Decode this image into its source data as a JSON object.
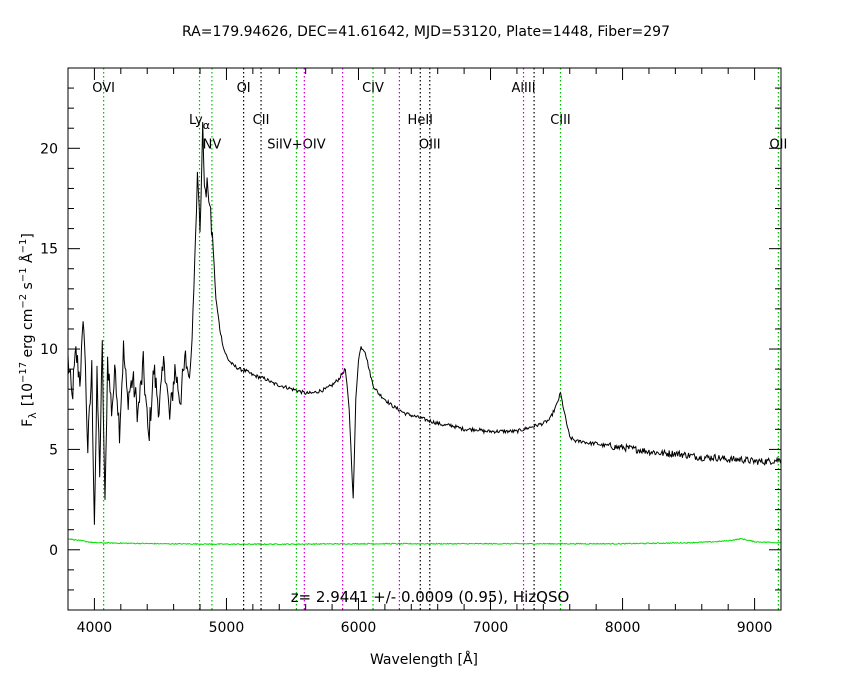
{
  "chart_data": {
    "type": "line",
    "title": "RA=179.94626, DEC=41.61642, MJD=53120, Plate=1448, Fiber=297",
    "xlabel": "Wavelength [Å]",
    "ylabel": {
      "main": "F",
      "sub": "λ",
      "unit_prefix": "[10",
      "exp1": "−17",
      "mid": " erg cm",
      "exp2": "−2",
      "mid2": " s",
      "exp3": "−1",
      "mid3": " Å",
      "exp4": "−1",
      "suffix": "]"
    },
    "xlim": [
      3800,
      9200
    ],
    "ylim": [
      -3,
      24
    ],
    "x_ticks": [
      4000,
      5000,
      6000,
      7000,
      8000,
      9000
    ],
    "y_ticks": [
      0,
      5,
      10,
      15,
      20
    ],
    "annotation": "z= 2.9441 +/- 0.0009 (0.95), HizQSO",
    "colors": {
      "flux": "#000000",
      "error": "#00dd00",
      "green_line": "#00bb00",
      "magenta_line": "#cc00cc",
      "black_line": "#000000"
    },
    "lines": [
      {
        "label": "OVI",
        "x": 4070,
        "color": "green",
        "label_y": 22.8
      },
      {
        "label": "Lyα",
        "x": 4796,
        "color": "green",
        "label_y": 21.2
      },
      {
        "label": "NV",
        "x": 4890,
        "color": "green",
        "label_y": 20.0
      },
      {
        "label": "OI",
        "x": 5130,
        "color": "black",
        "label_y": 22.8
      },
      {
        "label": "CII",
        "x": 5262,
        "color": "black",
        "label_y": 21.2
      },
      {
        "label": "SiIV+OIV",
        "x": 5530,
        "color": "green",
        "label_y": 20.0
      },
      {
        "label": "",
        "x": 5590,
        "color": "magenta",
        "label_y": 0
      },
      {
        "label": "",
        "x": 5880,
        "color": "magenta",
        "label_y": 0
      },
      {
        "label": "CIV",
        "x": 6110,
        "color": "green",
        "label_y": 22.8
      },
      {
        "label": "",
        "x": 6310,
        "color": "magenta",
        "label_y": 0
      },
      {
        "label": "HeII",
        "x": 6468,
        "color": "black",
        "label_y": 21.2
      },
      {
        "label": "OIII",
        "x": 6540,
        "color": "black",
        "label_y": 20.0
      },
      {
        "label": "AlIII",
        "x": 7250,
        "color": "magenta",
        "label_y": 22.8
      },
      {
        "label": "",
        "x": 7330,
        "color": "black",
        "label_y": 0
      },
      {
        "label": "CIII",
        "x": 7530,
        "color": "green",
        "label_y": 21.2
      },
      {
        "label": "OII",
        "x": 9180,
        "color": "green",
        "label_y": 20.0
      }
    ],
    "series": [
      {
        "name": "flux",
        "x": [
          3800,
          3830,
          3860,
          3890,
          3920,
          3950,
          3980,
          4000,
          4020,
          4040,
          4060,
          4080,
          4100,
          4130,
          4160,
          4190,
          4220,
          4250,
          4290,
          4330,
          4370,
          4410,
          4450,
          4490,
          4530,
          4570,
          4610,
          4650,
          4690,
          4720,
          4740,
          4760,
          4780,
          4800,
          4820,
          4840,
          4860,
          4880,
          4900,
          4920,
          4950,
          4980,
          5010,
          5050,
          5100,
          5150,
          5200,
          5250,
          5300,
          5350,
          5400,
          5450,
          5500,
          5550,
          5600,
          5650,
          5700,
          5750,
          5800,
          5850,
          5900,
          5930,
          5960,
          5980,
          6000,
          6020,
          6050,
          6080,
          6110,
          6150,
          6200,
          6250,
          6300,
          6350,
          6400,
          6450,
          6500,
          6550,
          6600,
          6650,
          6700,
          6750,
          6800,
          6850,
          6900,
          6950,
          7000,
          7050,
          7100,
          7150,
          7200,
          7250,
          7300,
          7350,
          7400,
          7450,
          7500,
          7530,
          7560,
          7600,
          7650,
          7700,
          7750,
          7800,
          7850,
          7900,
          7950,
          8000,
          8100,
          8200,
          8300,
          8400,
          8500,
          8600,
          8700,
          8800,
          8900,
          9000,
          9100,
          9200
        ],
        "y": [
          9.5,
          7.5,
          9.8,
          8.5,
          11.5,
          5.0,
          9.0,
          1.5,
          8.5,
          4.0,
          10.0,
          2.0,
          9.5,
          7.0,
          9.0,
          6.0,
          10.0,
          7.5,
          8.5,
          6.8,
          9.2,
          5.5,
          9.0,
          7.0,
          9.5,
          6.5,
          9.0,
          7.5,
          9.5,
          8.5,
          10.5,
          15.0,
          18.5,
          16.0,
          20.8,
          17.5,
          18.2,
          16.5,
          15.0,
          12.5,
          11.0,
          10.0,
          9.5,
          9.2,
          9.0,
          8.9,
          8.7,
          8.6,
          8.5,
          8.3,
          8.2,
          8.1,
          8.0,
          7.9,
          7.8,
          7.8,
          7.9,
          8.0,
          8.2,
          8.5,
          9.0,
          7.0,
          2.5,
          7.5,
          9.5,
          10.1,
          9.9,
          9.0,
          8.2,
          7.8,
          7.5,
          7.2,
          7.0,
          6.8,
          6.7,
          6.6,
          6.5,
          6.4,
          6.3,
          6.2,
          6.2,
          6.1,
          6.0,
          6.0,
          6.0,
          5.9,
          5.9,
          5.9,
          5.9,
          5.9,
          5.9,
          6.0,
          6.1,
          6.2,
          6.3,
          6.5,
          7.2,
          7.8,
          6.8,
          5.6,
          5.4,
          5.4,
          5.3,
          5.3,
          5.2,
          5.2,
          5.1,
          5.1,
          5.0,
          4.9,
          4.8,
          4.8,
          4.7,
          4.6,
          4.6,
          4.5,
          4.5,
          4.4,
          4.4,
          4.5
        ]
      },
      {
        "name": "error",
        "x": [
          3800,
          4000,
          4500,
          5000,
          5500,
          6000,
          6500,
          7000,
          7500,
          8000,
          8500,
          8700,
          8800,
          8900,
          9000,
          9200
        ],
        "y": [
          0.55,
          0.35,
          0.3,
          0.28,
          0.28,
          0.3,
          0.3,
          0.3,
          0.3,
          0.3,
          0.35,
          0.4,
          0.45,
          0.55,
          0.4,
          0.35
        ]
      }
    ]
  }
}
